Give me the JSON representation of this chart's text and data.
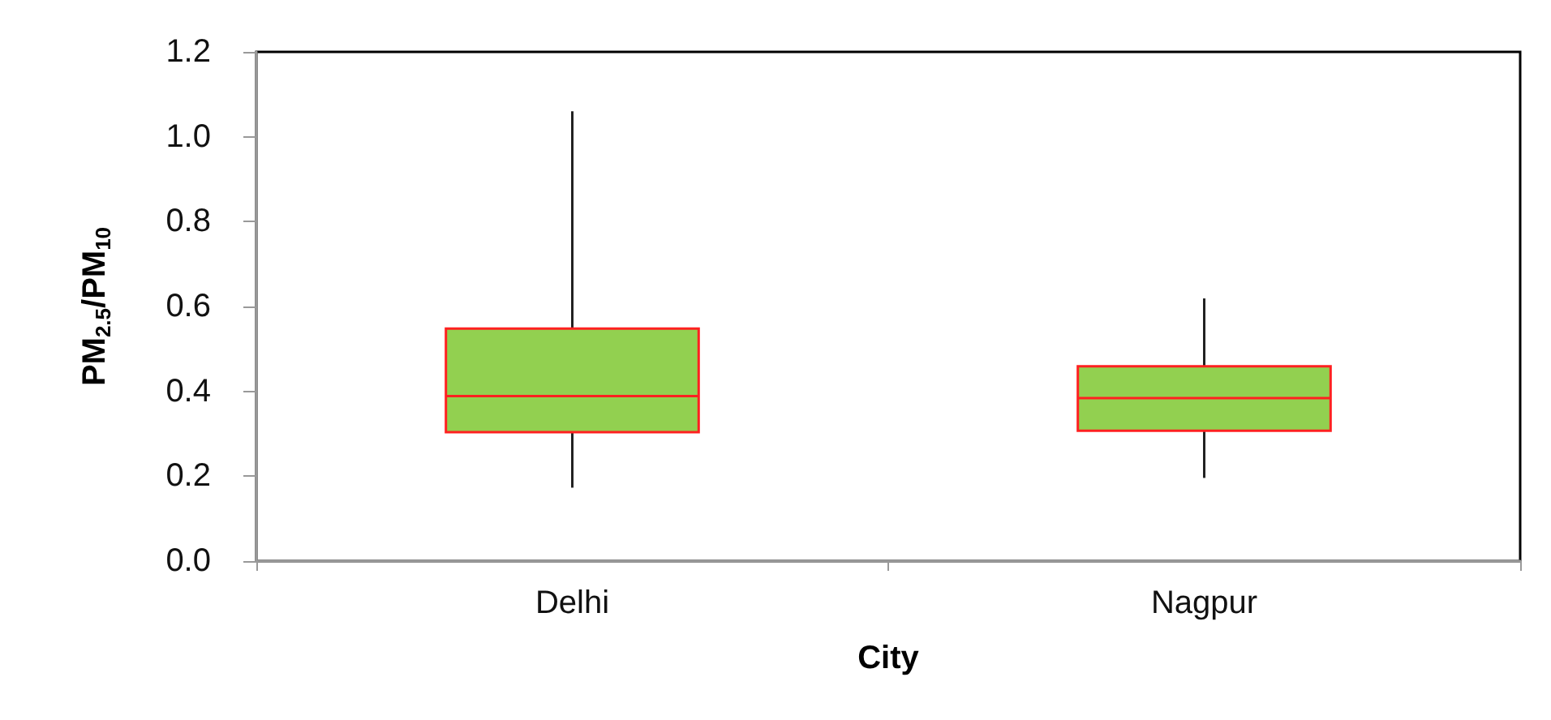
{
  "chart_data": {
    "type": "box",
    "xlabel": "City",
    "ylabel": "PM$_{2.5}$/PM$_{10}$",
    "categories": [
      "Delhi",
      "Nagpur"
    ],
    "color": "#92d050",
    "boxes": [
      {
        "low": 0.173,
        "q1": 0.304,
        "median": 0.389,
        "q3": 0.548,
        "high": 1.06
      },
      {
        "low": 0.196,
        "q1": 0.307,
        "median": 0.384,
        "q3": 0.459,
        "high": 0.619
      }
    ],
    "ylim": [
      0,
      1.2
    ],
    "yticks": [
      {
        "value": 0,
        "label": "0.0"
      },
      {
        "value": 0.2,
        "label": "0.2"
      },
      {
        "value": 0.4,
        "label": "0.4"
      },
      {
        "value": 0.6,
        "label": "0.6"
      },
      {
        "value": 0.8,
        "label": "0.8"
      },
      {
        "value": 1.0,
        "label": "1.0"
      },
      {
        "value": 1.2,
        "label": "1.2"
      }
    ]
  }
}
